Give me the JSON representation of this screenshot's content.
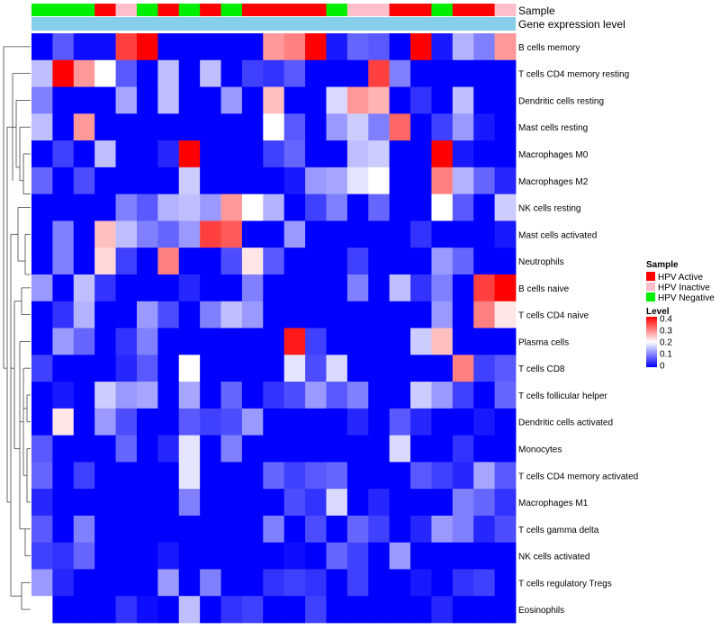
{
  "chart_data": {
    "type": "heatmap",
    "annotation_labels": {
      "sample": "Sample",
      "gene_expression": "Gene expression level"
    },
    "column_groups": [
      "HPV Negative",
      "HPV Negative",
      "HPV Negative",
      "HPV Active",
      "HPV Inactive",
      "HPV Negative",
      "HPV Active",
      "HPV Negative",
      "HPV Active",
      "HPV Negative",
      "HPV Active",
      "HPV Active",
      "HPV Active",
      "HPV Active",
      "HPV Negative",
      "HPV Inactive",
      "HPV Inactive",
      "HPV Active",
      "HPV Active",
      "HPV Negative",
      "HPV Active",
      "HPV Active",
      "HPV Inactive"
    ],
    "rows": [
      "B cells memory",
      "T cells CD4 memory resting",
      "Dendritic cells resting",
      "Mast cells resting",
      "Macrophages M0",
      "Macrophages M2",
      "NK cells resting",
      "Mast cells activated",
      "Neutrophils",
      "B cells naive",
      "T cells CD4 naive",
      "Plasma cells",
      "T cells CD8",
      "T cells follicular helper",
      "Dendritic cells activated",
      "Monocytes",
      "T cells CD4 memory activated",
      "Macrophages M1",
      "T cells gamma delta",
      "NK cells activated",
      "T cells regulatory  Tregs",
      "Eosinophils"
    ],
    "values": [
      [
        0.0,
        0.07,
        0.01,
        0.01,
        0.35,
        0.4,
        0.0,
        0.0,
        0.0,
        0.0,
        0.0,
        0.28,
        0.3,
        0.4,
        0.02,
        0.08,
        0.07,
        0.0,
        0.4,
        0.02,
        0.14,
        0.1,
        0.28
      ],
      [
        0.15,
        0.4,
        0.28,
        0.2,
        0.07,
        0.0,
        0.15,
        0.0,
        0.15,
        0.0,
        0.05,
        0.04,
        0.07,
        0.0,
        0.0,
        0.0,
        0.35,
        0.1,
        0.0,
        0.0,
        0.0,
        0.0,
        0.0
      ],
      [
        0.1,
        0.0,
        0.0,
        0.0,
        0.13,
        0.0,
        0.15,
        0.0,
        0.0,
        0.12,
        0.0,
        0.25,
        0.0,
        0.0,
        0.17,
        0.28,
        0.26,
        0.0,
        0.04,
        0.0,
        0.15,
        0.0,
        0.0
      ],
      [
        0.15,
        0.0,
        0.28,
        0.0,
        0.0,
        0.0,
        0.0,
        0.0,
        0.0,
        0.0,
        0.0,
        0.2,
        0.07,
        0.0,
        0.12,
        0.16,
        0.1,
        0.32,
        0.0,
        0.05,
        0.12,
        0.02,
        0.0
      ],
      [
        0.0,
        0.05,
        0.0,
        0.15,
        0.0,
        0.0,
        0.03,
        0.4,
        0.0,
        0.0,
        0.0,
        0.05,
        0.08,
        0.0,
        0.0,
        0.15,
        0.16,
        0.0,
        0.0,
        0.4,
        0.02,
        0.0,
        0.0
      ],
      [
        0.08,
        0.0,
        0.06,
        0.0,
        0.0,
        0.0,
        0.0,
        0.16,
        0.0,
        0.0,
        0.0,
        0.0,
        0.02,
        0.12,
        0.13,
        0.18,
        0.2,
        0.0,
        0.0,
        0.3,
        0.14,
        0.08,
        0.03
      ],
      [
        0.0,
        0.0,
        0.0,
        0.0,
        0.1,
        0.07,
        0.14,
        0.15,
        0.12,
        0.28,
        0.2,
        0.14,
        0.0,
        0.05,
        0.1,
        0.0,
        0.08,
        0.0,
        0.0,
        0.2,
        0.07,
        0.0,
        0.16
      ],
      [
        0.0,
        0.1,
        0.0,
        0.25,
        0.15,
        0.1,
        0.08,
        0.12,
        0.35,
        0.33,
        0.0,
        0.0,
        0.12,
        0.0,
        0.0,
        0.0,
        0.0,
        0.0,
        0.04,
        0.0,
        0.0,
        0.0,
        0.02
      ],
      [
        0.0,
        0.1,
        0.0,
        0.23,
        0.05,
        0.0,
        0.3,
        0.0,
        0.0,
        0.06,
        0.22,
        0.07,
        0.0,
        0.0,
        0.0,
        0.05,
        0.0,
        0.0,
        0.0,
        0.12,
        0.08,
        0.0,
        0.0
      ],
      [
        0.12,
        0.0,
        0.15,
        0.04,
        0.0,
        0.0,
        0.0,
        0.03,
        0.0,
        0.0,
        0.1,
        0.0,
        0.0,
        0.0,
        0.0,
        0.1,
        0.0,
        0.15,
        0.04,
        0.1,
        0.0,
        0.35,
        0.4
      ],
      [
        0.0,
        0.04,
        0.14,
        0.0,
        0.0,
        0.12,
        0.06,
        0.0,
        0.1,
        0.15,
        0.12,
        0.0,
        0.0,
        0.0,
        0.0,
        0.0,
        0.0,
        0.0,
        0.0,
        0.12,
        0.0,
        0.3,
        0.22
      ],
      [
        0.0,
        0.12,
        0.08,
        0.0,
        0.04,
        0.1,
        0.0,
        0.0,
        0.0,
        0.0,
        0.0,
        0.0,
        0.38,
        0.05,
        0.0,
        0.0,
        0.0,
        0.0,
        0.16,
        0.25,
        0.0,
        0.0,
        0.0
      ],
      [
        0.05,
        0.0,
        0.0,
        0.0,
        0.03,
        0.07,
        0.0,
        0.2,
        0.0,
        0.0,
        0.0,
        0.0,
        0.18,
        0.06,
        0.17,
        0.0,
        0.0,
        0.0,
        0.0,
        0.0,
        0.3,
        0.05,
        0.07
      ],
      [
        0.0,
        0.02,
        0.0,
        0.16,
        0.12,
        0.13,
        0.0,
        0.13,
        0.0,
        0.08,
        0.0,
        0.04,
        0.06,
        0.12,
        0.07,
        0.1,
        0.0,
        0.0,
        0.16,
        0.12,
        0.05,
        0.0,
        0.08
      ],
      [
        0.0,
        0.22,
        0.0,
        0.12,
        0.06,
        0.0,
        0.0,
        0.07,
        0.05,
        0.06,
        0.12,
        0.0,
        0.0,
        0.0,
        0.0,
        0.03,
        0.0,
        0.07,
        0.03,
        0.0,
        0.0,
        0.02,
        0.0
      ],
      [
        0.07,
        0.0,
        0.0,
        0.0,
        0.08,
        0.0,
        0.03,
        0.18,
        0.0,
        0.1,
        0.0,
        0.0,
        0.0,
        0.0,
        0.0,
        0.0,
        0.0,
        0.17,
        0.0,
        0.0,
        0.04,
        0.0,
        0.0
      ],
      [
        0.08,
        0.0,
        0.05,
        0.0,
        0.0,
        0.0,
        0.0,
        0.18,
        0.0,
        0.0,
        0.0,
        0.08,
        0.05,
        0.07,
        0.08,
        0.0,
        0.0,
        0.0,
        0.07,
        0.05,
        0.03,
        0.13,
        0.07
      ],
      [
        0.03,
        0.0,
        0.0,
        0.0,
        0.0,
        0.0,
        0.0,
        0.1,
        0.0,
        0.0,
        0.0,
        0.0,
        0.06,
        0.04,
        0.17,
        0.0,
        0.03,
        0.0,
        0.0,
        0.0,
        0.1,
        0.08,
        0.04
      ],
      [
        0.07,
        0.0,
        0.1,
        0.0,
        0.0,
        0.0,
        0.0,
        0.0,
        0.0,
        0.0,
        0.0,
        0.1,
        0.0,
        0.06,
        0.0,
        0.08,
        0.05,
        0.0,
        0.03,
        0.12,
        0.1,
        0.03,
        0.06
      ],
      [
        0.05,
        0.04,
        0.08,
        0.0,
        0.0,
        0.0,
        0.02,
        0.0,
        0.0,
        0.0,
        0.0,
        0.0,
        0.01,
        0.0,
        0.08,
        0.05,
        0.0,
        0.12,
        0.0,
        0.0,
        0.0,
        0.0,
        0.0
      ],
      [
        0.12,
        0.03,
        0.0,
        0.0,
        0.0,
        0.0,
        0.12,
        0.0,
        0.1,
        0.0,
        0.0,
        0.04,
        0.05,
        0.04,
        0.0,
        0.05,
        0.0,
        0.0,
        0.02,
        0.0,
        0.04,
        0.05,
        0.0
      ],
      [
        0.2,
        0.0,
        0.0,
        0.0,
        0.04,
        0.01,
        0.0,
        0.15,
        0.0,
        0.04,
        0.05,
        0.0,
        0.0,
        0.05,
        0.0,
        0.0,
        0.0,
        0.0,
        0.0,
        0.03,
        0.0,
        0.0,
        0.0
      ]
    ],
    "legend": {
      "sample_title": "Sample",
      "groups": [
        {
          "label": "HPV Active",
          "color": "#ff0000"
        },
        {
          "label": "HPV Inactive",
          "color": "#ffc0cb"
        },
        {
          "label": "HPV Negative",
          "color": "#00ee00"
        }
      ],
      "level_title": "Level",
      "level_ticks": [
        "0.4",
        "0.3",
        "0.2",
        "0.1",
        "0"
      ],
      "level_range": [
        0,
        0.4
      ]
    },
    "colors": {
      "low": "#0000ff",
      "mid": "#ffffff",
      "high": "#ff0000",
      "gene_expression_bar": "#87ceeb"
    }
  }
}
